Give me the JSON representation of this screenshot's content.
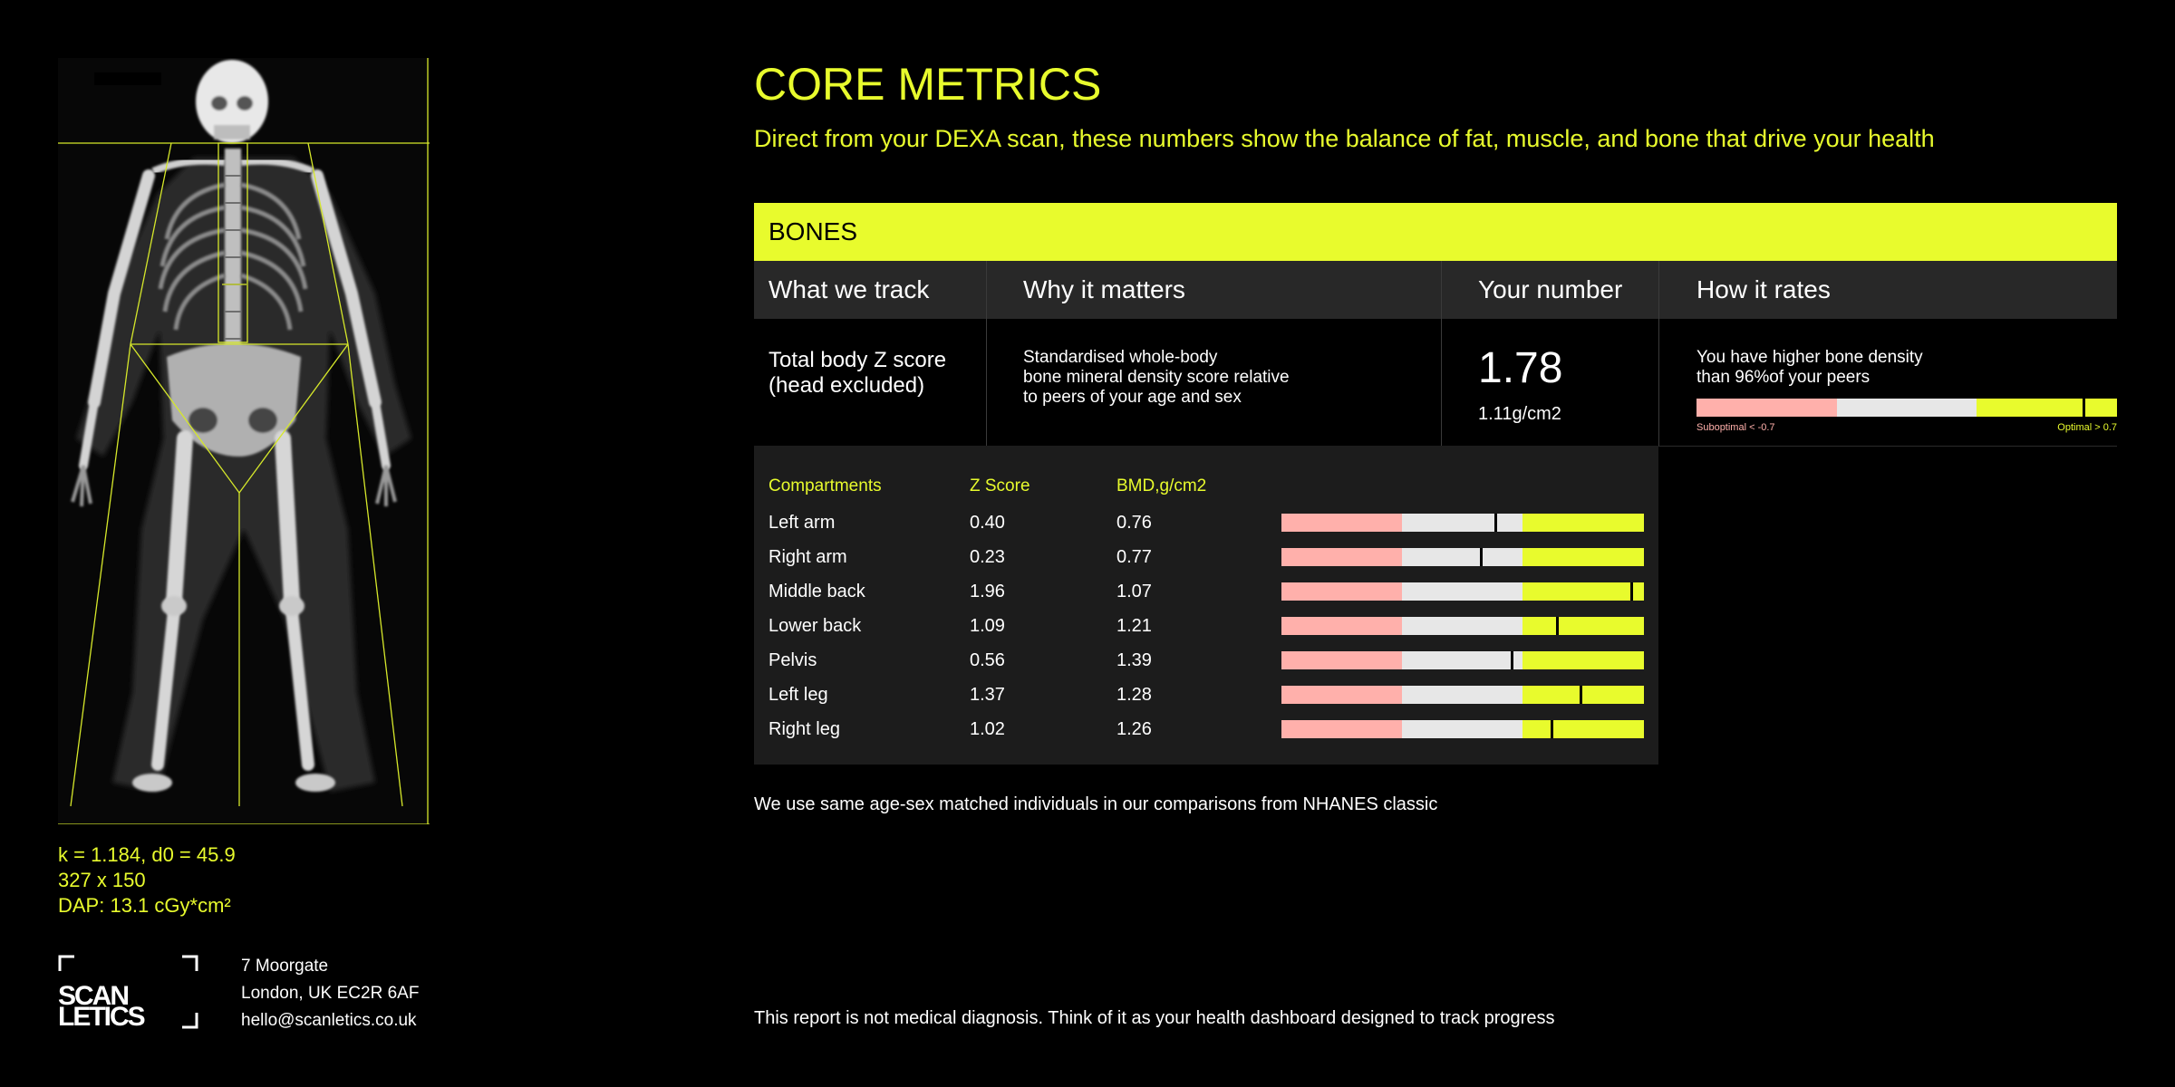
{
  "scan_readout": {
    "line1": "k = 1.184, d0 = 45.9",
    "line2": "327 x 150",
    "line3": "DAP: 13.1 cGy*cm²"
  },
  "brand": {
    "logo_text_line1": "SCAN",
    "logo_text_line2": "LETICS",
    "address_line1": "7 Moorgate",
    "address_line2": "London, UK EC2R 6AF",
    "email": "hello@scanletics.co.uk"
  },
  "header": {
    "title": "CORE METRICS",
    "subtitle": "Direct from your DEXA scan, these numbers show the balance of fat, muscle, and bone that drive your health"
  },
  "section": {
    "title": "BONES",
    "columns": [
      "What we track",
      "Why it matters",
      "Your number",
      "How it rates"
    ]
  },
  "main_metric": {
    "name_line1": "Total body Z score",
    "name_line2": "(head excluded)",
    "why_line1": "Standardised whole-body",
    "why_line2": "bone mineral density score relative",
    "why_line3": "to peers of your age and sex",
    "value": "1.78",
    "sub_value": "1.11g/cm2",
    "rating_line1": "You have higher bone density",
    "rating_line2": "than 96%of your peers",
    "scale_low_label": "Suboptimal < -0.7",
    "scale_high_label": "Optimal > 0.7",
    "marker_fraction": 0.92
  },
  "compartments": {
    "headers": [
      "Compartments",
      "Z Score",
      "BMD,g/cm2"
    ],
    "rows": [
      {
        "name": "Left arm",
        "z": "0.40",
        "bmd": "0.76",
        "marker_fraction": 0.59
      },
      {
        "name": "Right arm",
        "z": "0.23",
        "bmd": "0.77",
        "marker_fraction": 0.55
      },
      {
        "name": "Middle back",
        "z": "1.96",
        "bmd": "1.07",
        "marker_fraction": 0.965
      },
      {
        "name": "Lower back",
        "z": "1.09",
        "bmd": "1.21",
        "marker_fraction": 0.76
      },
      {
        "name": "Pelvis",
        "z": "0.56",
        "bmd": "1.39",
        "marker_fraction": 0.635
      },
      {
        "name": "Left leg",
        "z": "1.37",
        "bmd": "1.28",
        "marker_fraction": 0.825
      },
      {
        "name": "Right leg",
        "z": "1.02",
        "bmd": "1.26",
        "marker_fraction": 0.745
      }
    ]
  },
  "footnote": "We use same age-sex matched individuals in our comparisons from NHANES classic",
  "disclaimer": "This report is not medical diagnosis. Think of it as your health dashboard designed to track progress",
  "colors": {
    "accent": "#e8fb2d",
    "suboptimal": "#ffb0ab",
    "neutral": "#e7e7e7",
    "panel": "#1c1c1c"
  }
}
